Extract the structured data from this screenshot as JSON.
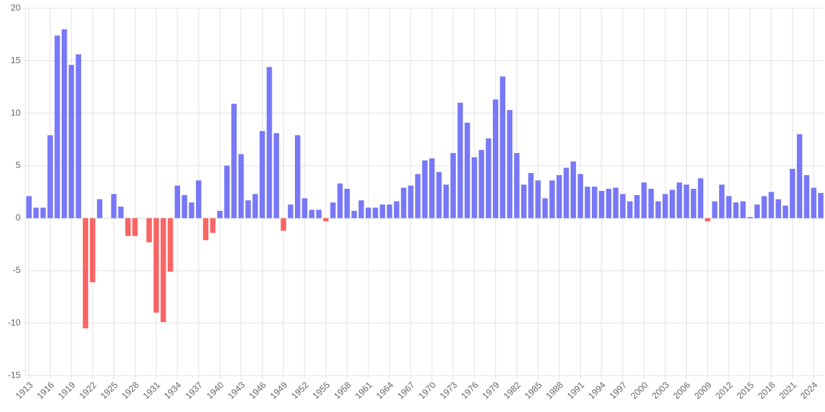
{
  "chart_data": {
    "type": "bar",
    "categories": [
      "1913",
      null,
      null,
      "1916",
      null,
      null,
      "1919",
      null,
      null,
      "1922",
      null,
      null,
      "1925",
      null,
      null,
      "1928",
      null,
      null,
      "1931",
      null,
      null,
      "1934",
      null,
      null,
      "1937",
      null,
      null,
      "1940",
      null,
      null,
      "1943",
      null,
      null,
      "1946",
      null,
      null,
      "1949",
      null,
      null,
      "1952",
      null,
      null,
      "1955",
      null,
      null,
      "1958",
      null,
      null,
      "1961",
      null,
      null,
      "1964",
      null,
      null,
      "1967",
      null,
      null,
      "1970",
      null,
      null,
      "1973",
      null,
      null,
      "1976",
      null,
      null,
      "1979",
      null,
      null,
      "1982",
      null,
      null,
      "1985",
      null,
      null,
      "1988",
      null,
      null,
      "1991",
      null,
      null,
      "1994",
      null,
      null,
      "1997",
      null,
      null,
      "2000",
      null,
      null,
      "2003",
      null,
      null,
      "2006",
      null,
      null,
      "2009",
      null,
      null,
      "2012",
      null,
      null,
      "2015",
      null,
      null,
      "2018",
      null,
      null,
      "2021",
      null,
      null,
      "2024",
      null
    ],
    "values": [
      2.1,
      1.0,
      1.0,
      7.9,
      17.4,
      18.0,
      14.6,
      15.6,
      -10.5,
      -6.1,
      1.8,
      0.0,
      2.3,
      1.1,
      -1.7,
      -1.7,
      0.0,
      -2.3,
      -9.0,
      -9.9,
      -5.1,
      3.1,
      2.2,
      1.5,
      3.6,
      -2.1,
      -1.4,
      0.7,
      5.0,
      10.9,
      6.1,
      1.7,
      2.3,
      8.3,
      14.4,
      8.1,
      -1.2,
      1.3,
      7.9,
      1.9,
      0.8,
      0.8,
      -0.3,
      1.5,
      3.3,
      2.8,
      0.7,
      1.7,
      1.0,
      1.0,
      1.3,
      1.3,
      1.6,
      2.9,
      3.1,
      4.2,
      5.5,
      5.7,
      4.4,
      3.2,
      6.2,
      11.0,
      9.1,
      5.8,
      6.5,
      7.6,
      11.3,
      13.5,
      10.3,
      6.2,
      3.2,
      4.3,
      3.6,
      1.9,
      3.6,
      4.1,
      4.8,
      5.4,
      4.2,
      3.0,
      3.0,
      2.6,
      2.8,
      2.9,
      2.3,
      1.6,
      2.2,
      3.4,
      2.8,
      1.6,
      2.3,
      2.7,
      3.4,
      3.2,
      2.8,
      3.8,
      -0.3,
      1.6,
      3.2,
      2.1,
      1.5,
      1.6,
      0.1,
      1.3,
      2.1,
      2.5,
      1.8,
      1.2,
      4.7,
      8.0,
      4.1,
      2.9,
      2.4
    ],
    "color": "#7878f8",
    "negative_color": "#fa6464",
    "ylim": [
      -15,
      20
    ],
    "yticks": [
      -15,
      -10,
      -5,
      0,
      5,
      10,
      15,
      20
    ],
    "grid": true
  }
}
